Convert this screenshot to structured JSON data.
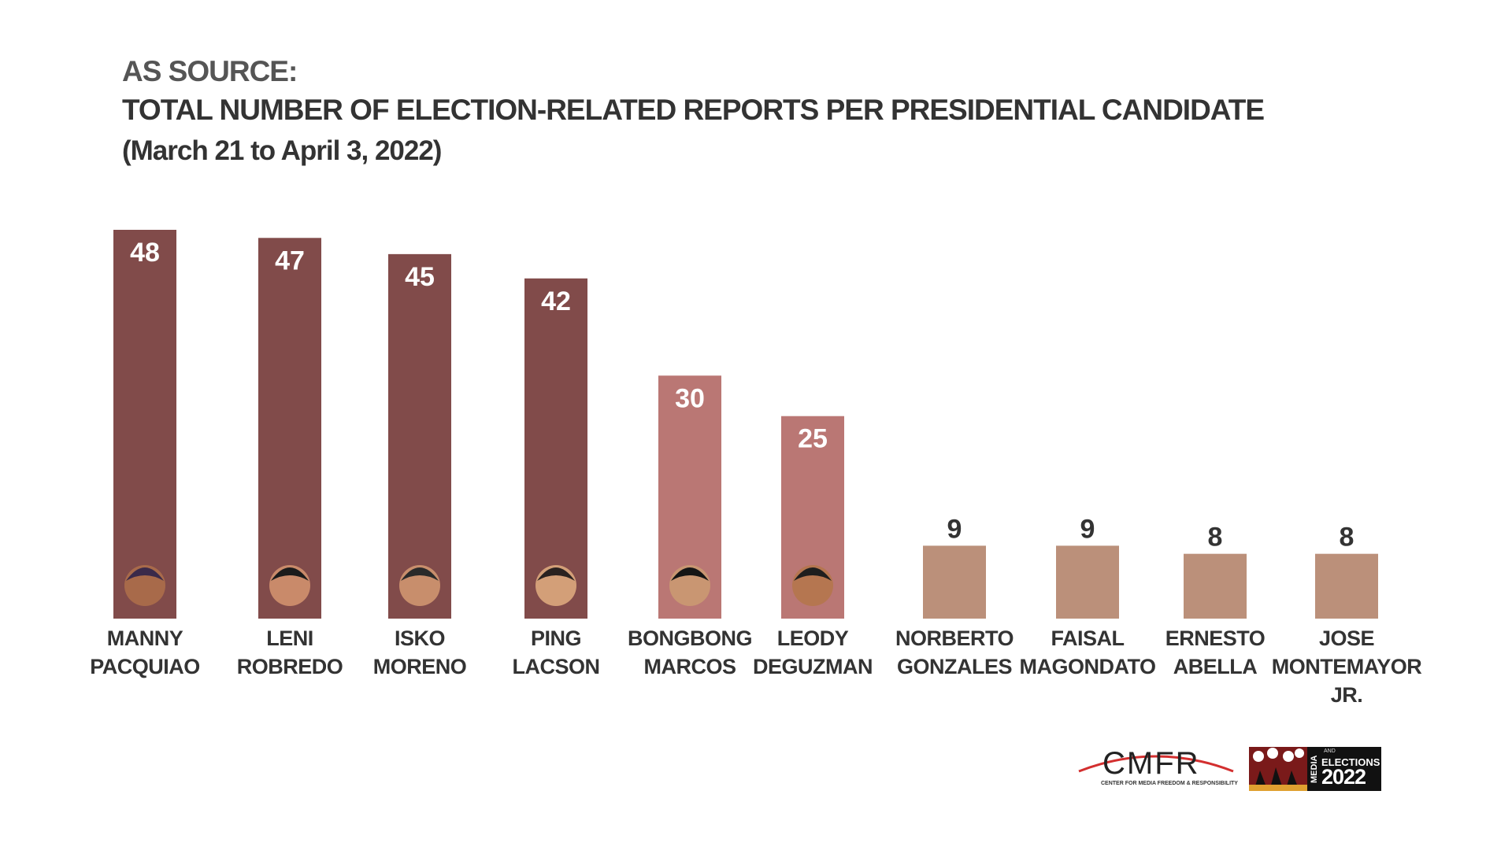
{
  "header": {
    "line1": "AS SOURCE:",
    "line2": "TOTAL NUMBER OF  ELECTION-RELATED REPORTS PER PRESIDENTIAL CANDIDATE",
    "line3": "(March 21 to April 3, 2022)"
  },
  "colors": {
    "dark_bar": "#814b4a",
    "mid_bar": "#ba7774",
    "light_bar": "#bb907a",
    "value_dark": "#333333",
    "value_light": "#ffffff"
  },
  "chart_data": {
    "type": "bar",
    "title": "TOTAL NUMBER OF  ELECTION-RELATED REPORTS PER PRESIDENTIAL CANDIDATE",
    "subtitle": "(March 21 to April 3, 2022)",
    "categories": [
      [
        "MANNY",
        "PACQUIAO"
      ],
      [
        "LENI",
        "ROBREDO"
      ],
      [
        "ISKO",
        "MORENO"
      ],
      [
        "PING",
        "LACSON"
      ],
      [
        "BONGBONG",
        "MARCOS"
      ],
      [
        "LEODY",
        "DEGUZMAN"
      ],
      [
        "NORBERTO",
        "GONZALES"
      ],
      [
        "FAISAL",
        "MAGONDATO"
      ],
      [
        "ERNESTO",
        "ABELLA"
      ],
      [
        "JOSE",
        "MONTEMAYOR",
        "JR."
      ]
    ],
    "values": [
      48,
      47,
      45,
      42,
      30,
      25,
      9,
      9,
      8,
      8
    ],
    "bar_colors": [
      "dark_bar",
      "dark_bar",
      "dark_bar",
      "dark_bar",
      "mid_bar",
      "mid_bar",
      "light_bar",
      "light_bar",
      "light_bar",
      "light_bar"
    ],
    "has_portrait": [
      true,
      true,
      true,
      true,
      true,
      true,
      false,
      false,
      false,
      false
    ],
    "xlabel": "",
    "ylabel": "",
    "ylim": [
      0,
      52
    ],
    "grid": false,
    "legend": "none",
    "data_labels": "inside-top for large bars, above for small bars"
  },
  "logos": {
    "cmfr_word": "CMFR",
    "cmfr_sub": "CENTER FOR MEDIA FREEDOM & RESPONSIBILITY",
    "me_media": "MEDIA",
    "me_and": "AND",
    "me_elections": "ELECTIONS",
    "me_year": "2022"
  }
}
